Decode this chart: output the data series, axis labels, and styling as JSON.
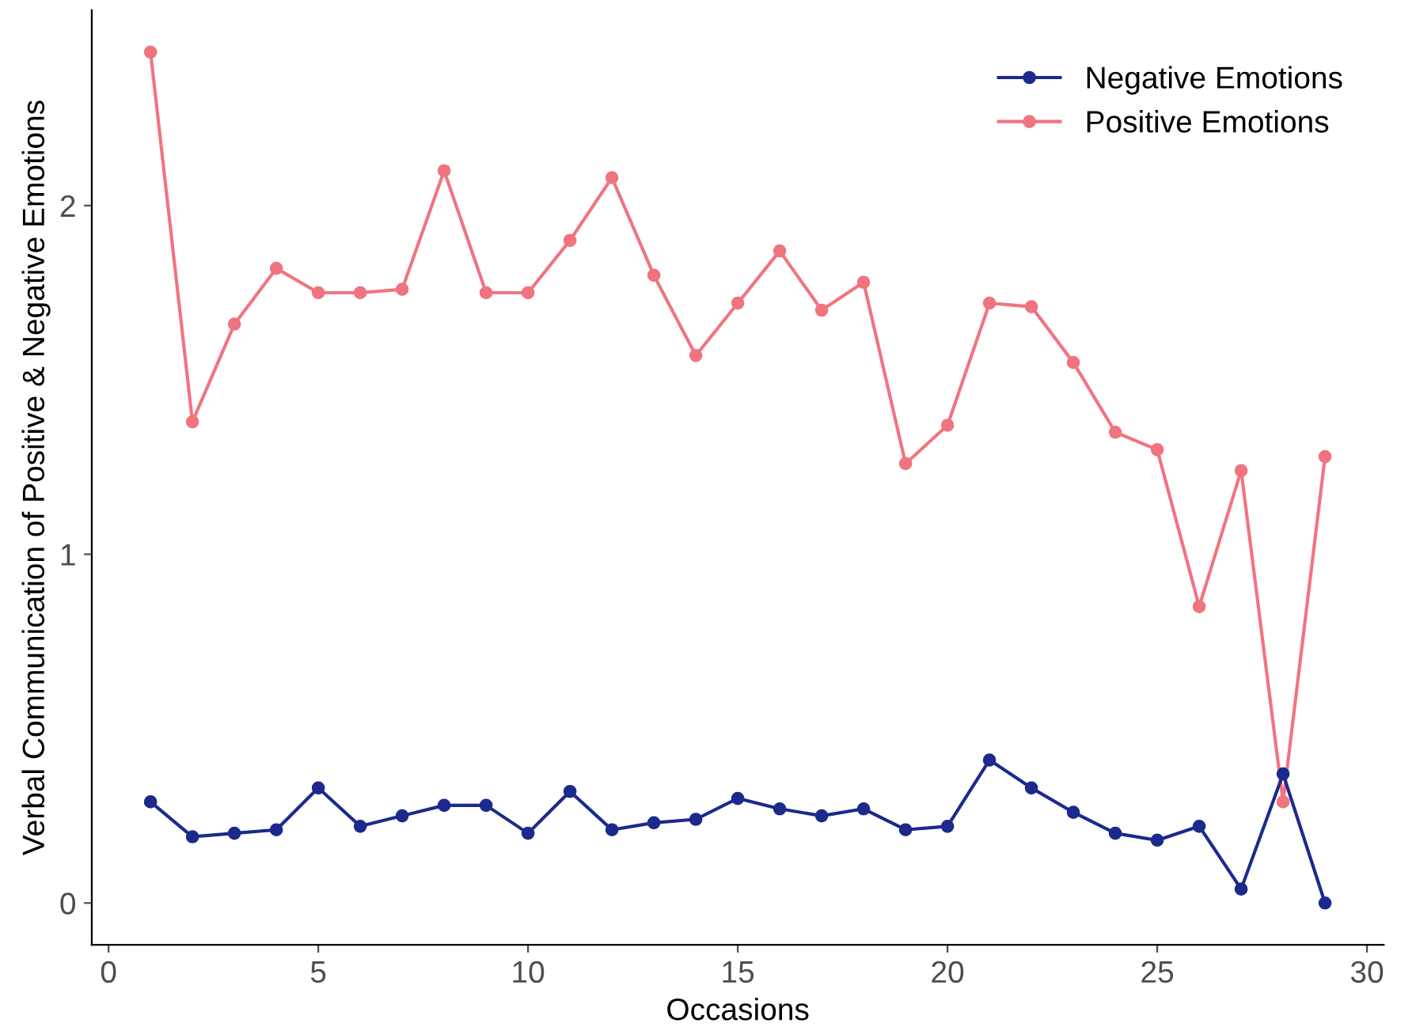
{
  "chart_data": {
    "type": "line",
    "xlabel": "Occasions",
    "ylabel": "Verbal Communication of Positive & Negative Emotions",
    "x": [
      1,
      2,
      3,
      4,
      5,
      6,
      7,
      8,
      9,
      10,
      11,
      12,
      13,
      14,
      15,
      16,
      17,
      18,
      19,
      20,
      21,
      22,
      23,
      24,
      25,
      26,
      27,
      28,
      29
    ],
    "series": [
      {
        "name": "Negative Emotions",
        "color": "#1b2a8c",
        "values": [
          0.29,
          0.19,
          0.2,
          0.21,
          0.33,
          0.22,
          0.25,
          0.28,
          0.28,
          0.2,
          0.32,
          0.21,
          0.23,
          0.24,
          0.3,
          0.27,
          0.25,
          0.27,
          0.21,
          0.22,
          0.41,
          0.33,
          0.26,
          0.2,
          0.18,
          0.22,
          0.04,
          0.37,
          0.0
        ]
      },
      {
        "name": "Positive Emotions",
        "color": "#f07480",
        "values": [
          2.44,
          1.38,
          1.66,
          1.82,
          1.75,
          1.75,
          1.76,
          2.1,
          1.75,
          1.75,
          1.9,
          2.08,
          1.8,
          1.57,
          1.72,
          1.87,
          1.7,
          1.78,
          1.26,
          1.37,
          1.72,
          1.71,
          1.55,
          1.35,
          1.3,
          0.85,
          1.24,
          0.29,
          1.28
        ]
      }
    ],
    "xlim": [
      -0.4,
      30.4
    ],
    "ylim": [
      -0.12,
      2.56
    ],
    "xticks": [
      0,
      5,
      10,
      15,
      20,
      25,
      30
    ],
    "yticks": [
      0,
      1,
      2
    ],
    "grid": false,
    "legend": "top right",
    "marker": "circle",
    "line_style": "solid"
  }
}
